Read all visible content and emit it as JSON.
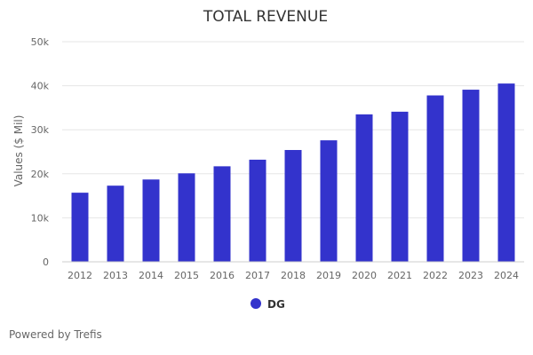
{
  "chart_data": {
    "type": "bar",
    "title": "TOTAL REVENUE",
    "xlabel": "",
    "ylabel": "Values ($ Mil)",
    "categories": [
      "2012",
      "2013",
      "2014",
      "2015",
      "2016",
      "2017",
      "2018",
      "2019",
      "2020",
      "2021",
      "2022",
      "2023",
      "2024"
    ],
    "series": [
      {
        "name": "DG",
        "values": [
          15700,
          17300,
          18700,
          20100,
          21700,
          23200,
          25400,
          27600,
          33500,
          34100,
          37800,
          39100,
          40500
        ]
      }
    ],
    "ylim": [
      0,
      50000
    ],
    "yticks": [
      0,
      10000,
      20000,
      30000,
      40000,
      50000
    ],
    "ytick_labels": [
      "0",
      "10k",
      "20k",
      "30k",
      "40k",
      "50k"
    ],
    "grid": true,
    "legend_position": "bottom-center",
    "colors": {
      "bar": "#3333cc",
      "grid": "#e6e6e6",
      "axis": "#cccccc"
    }
  },
  "footer": {
    "credit": "Powered by Trefis"
  }
}
